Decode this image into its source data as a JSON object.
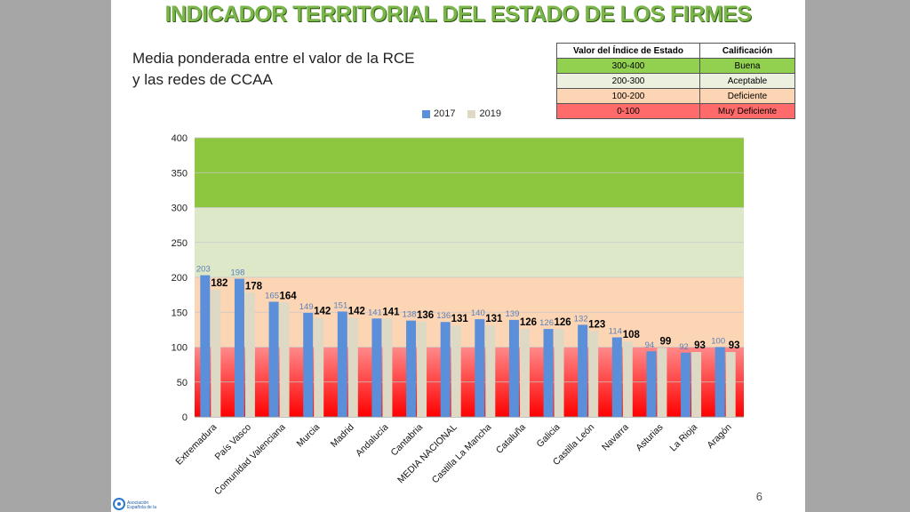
{
  "title": "INDICADOR TERRITORIAL DEL ESTADO DE LOS FIRMES",
  "subtitle_line1": "Media ponderada entre el valor de la RCE",
  "subtitle_line2": "y las redes de CCAA",
  "page_number": "6",
  "logo": {
    "line1": "Asociación",
    "line2": "Española de la"
  },
  "ratings_table": {
    "headers": [
      "Valor del Índice de Estado",
      "Calificación"
    ],
    "rows": [
      {
        "range": "300-400",
        "label": "Buena",
        "color": "#92d050"
      },
      {
        "range": "200-300",
        "label": "Aceptable",
        "color": "#ebf1de"
      },
      {
        "range": "100-200",
        "label": "Deficiente",
        "color": "#fcd5b4"
      },
      {
        "range": "0-100",
        "label": "Muy Deficiente",
        "color": "#ff6b6b"
      }
    ]
  },
  "colors": {
    "series2017": "#5b8fd9",
    "series2019": "#ddd9c4",
    "label2017": "#5a7fb8",
    "label2019": "#000000"
  },
  "chart_data": {
    "type": "bar",
    "categories": [
      "Extremadura",
      "País Vasco",
      "Comunidad Valenciana",
      "Murcia",
      "Madrid",
      "Andalucía",
      "Cantabria",
      "MEDIA NACIONAL",
      "Castilla La Mancha",
      "Cataluña",
      "Galicia",
      "Castilla León",
      "Navarra",
      "Asturias",
      "La Rioja",
      "Aragón"
    ],
    "series": [
      {
        "name": "2017",
        "values": [
          203,
          198,
          165,
          149,
          151,
          141,
          138,
          136,
          140,
          139,
          126,
          132,
          114,
          94,
          92,
          100
        ]
      },
      {
        "name": "2019",
        "values": [
          182,
          178,
          164,
          142,
          142,
          141,
          136,
          131,
          131,
          126,
          126,
          123,
          108,
          99,
          93,
          93
        ]
      }
    ],
    "ylim": [
      0,
      400
    ],
    "yticks": [
      0,
      50,
      100,
      150,
      200,
      250,
      300,
      350,
      400
    ],
    "legend": "top"
  }
}
